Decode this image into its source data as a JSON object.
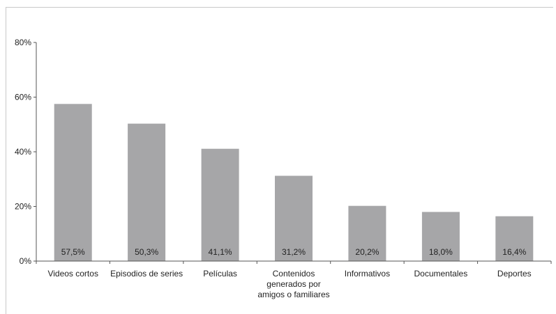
{
  "chart_data": {
    "type": "bar",
    "categories": [
      [
        "Videos cortos"
      ],
      [
        "Episodios de series"
      ],
      [
        "Películas"
      ],
      [
        "Contenidos",
        "generados por",
        "amigos o familiares"
      ],
      [
        "Informativos"
      ],
      [
        "Documentales"
      ],
      [
        "Deportes"
      ]
    ],
    "values": [
      57.5,
      50.3,
      41.1,
      31.2,
      20.2,
      18.0,
      16.4
    ],
    "data_labels": [
      "57,5%",
      "50,3%",
      "41,1%",
      "31,2%",
      "20,2%",
      "18,0%",
      "16,4%"
    ],
    "y_ticks": [
      0,
      20,
      40,
      60,
      80
    ],
    "y_tick_labels": [
      "0%",
      "20%",
      "40%",
      "60%",
      "80%"
    ],
    "ylim": [
      0,
      80
    ],
    "grid": false,
    "legend": "none",
    "bar_color": "#a6a6a8",
    "axis_color": "#555555"
  }
}
